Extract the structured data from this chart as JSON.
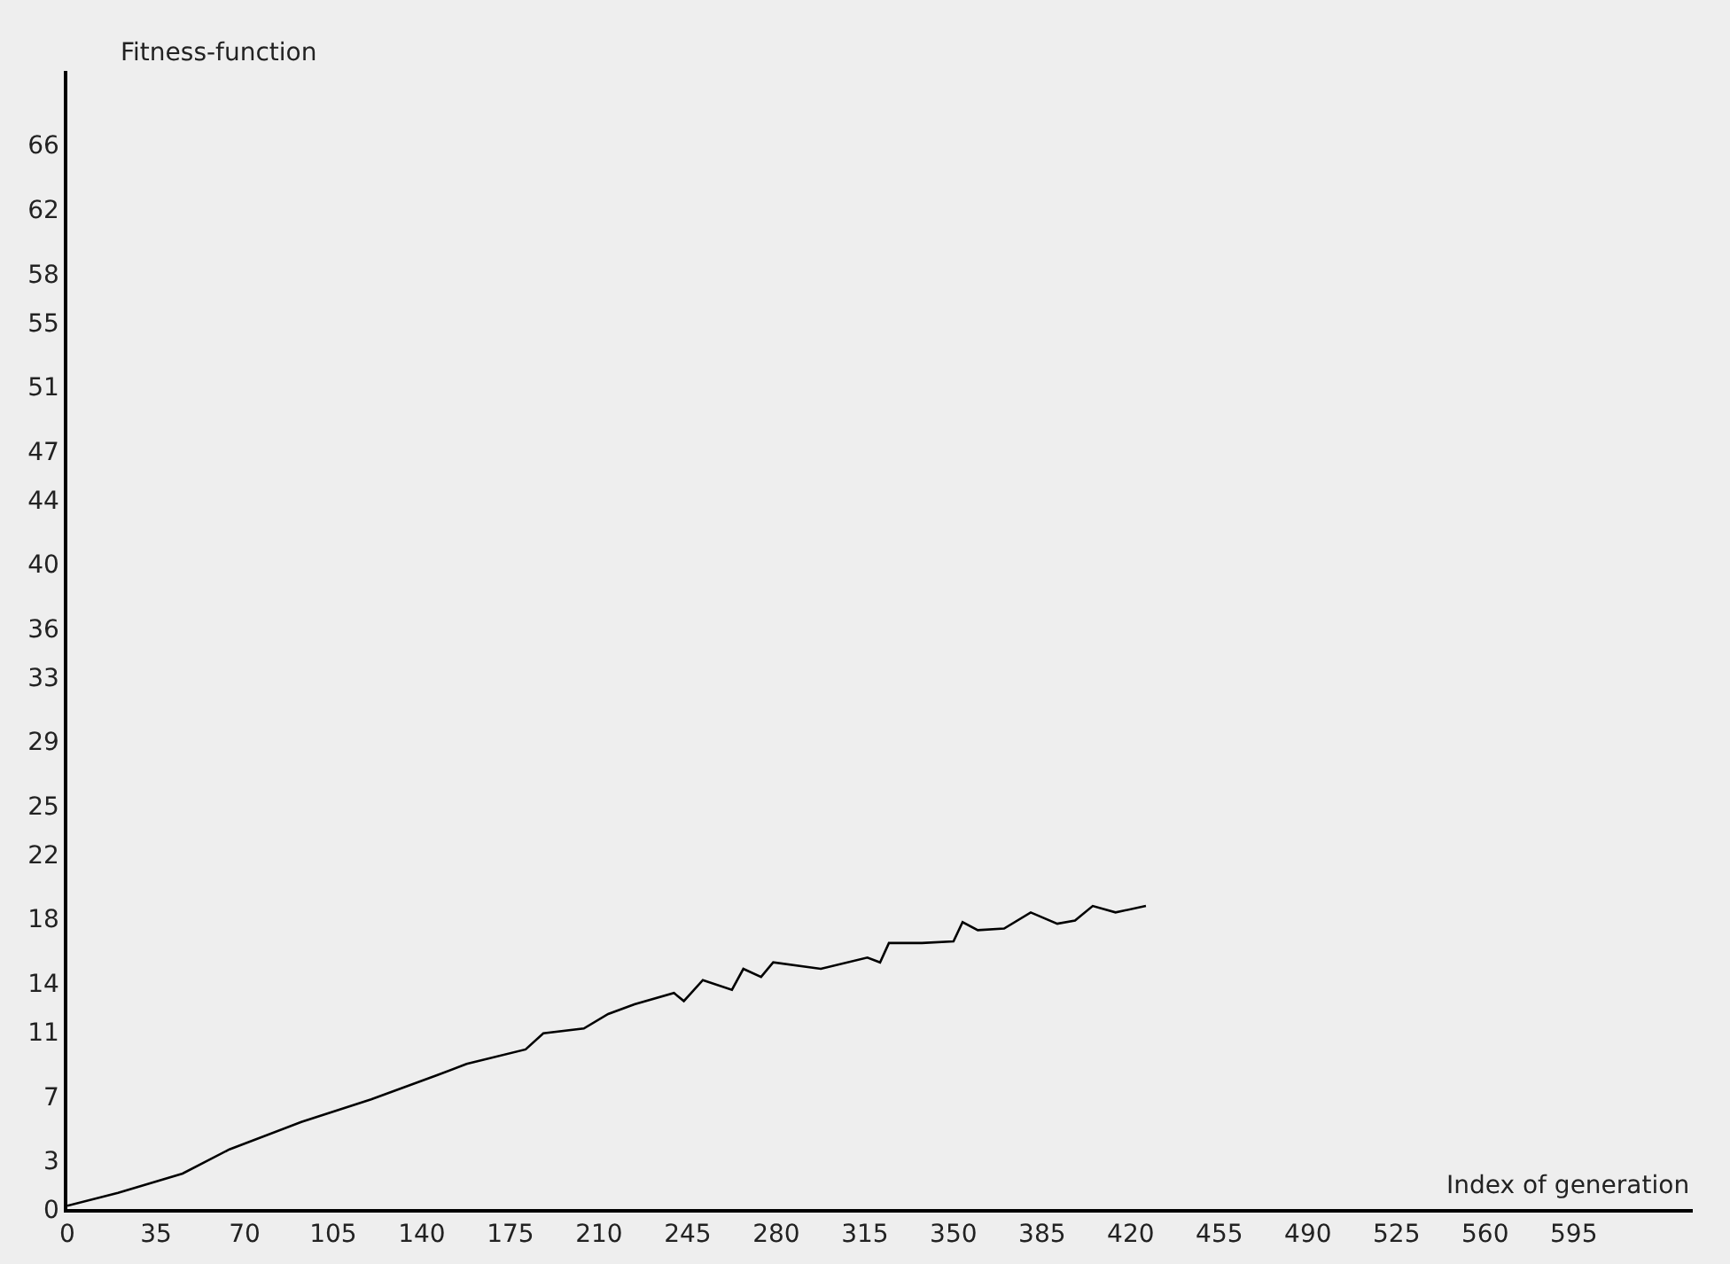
{
  "chart_data": {
    "type": "line",
    "xlabel": "Index of generation",
    "ylabel": "Fitness-function",
    "x": [
      0,
      20,
      45.5,
      64,
      92.4,
      120,
      146,
      157.7,
      181,
      188,
      204,
      213.6,
      224,
      239.6,
      243.5,
      251,
      262.5,
      267,
      274,
      278.8,
      297.6,
      316,
      321,
      324.5,
      337.5,
      350,
      353.6,
      359.6,
      370,
      380.5,
      391,
      398,
      405,
      414,
      426
    ],
    "series": [
      {
        "color": "#000000",
        "values": [
          0.2,
          1.0,
          2.2,
          3.7,
          5.4,
          6.8,
          8.3,
          9.0,
          9.9,
          10.9,
          11.2,
          12.1,
          12.7,
          13.4,
          12.9,
          14.2,
          13.6,
          14.9,
          14.4,
          15.3,
          14.9,
          15.6,
          15.3,
          16.5,
          16.5,
          16.6,
          17.8,
          17.3,
          17.4,
          18.4,
          17.7,
          17.9,
          18.8,
          18.4,
          18.8
        ]
      }
    ],
    "xlim": [
      0,
      642
    ],
    "ylim": [
      0,
      70.6
    ],
    "xticks": [
      0,
      35,
      70,
      105,
      140,
      175,
      210,
      245,
      280,
      315,
      350,
      385,
      420,
      455,
      490,
      525,
      560,
      595
    ],
    "yticks": [
      0,
      3,
      7,
      11,
      14,
      18,
      22,
      25,
      29,
      33,
      36,
      40,
      44,
      47,
      51,
      55,
      58,
      62,
      66
    ],
    "grid": false,
    "marker": "none",
    "line_style": "solid"
  }
}
